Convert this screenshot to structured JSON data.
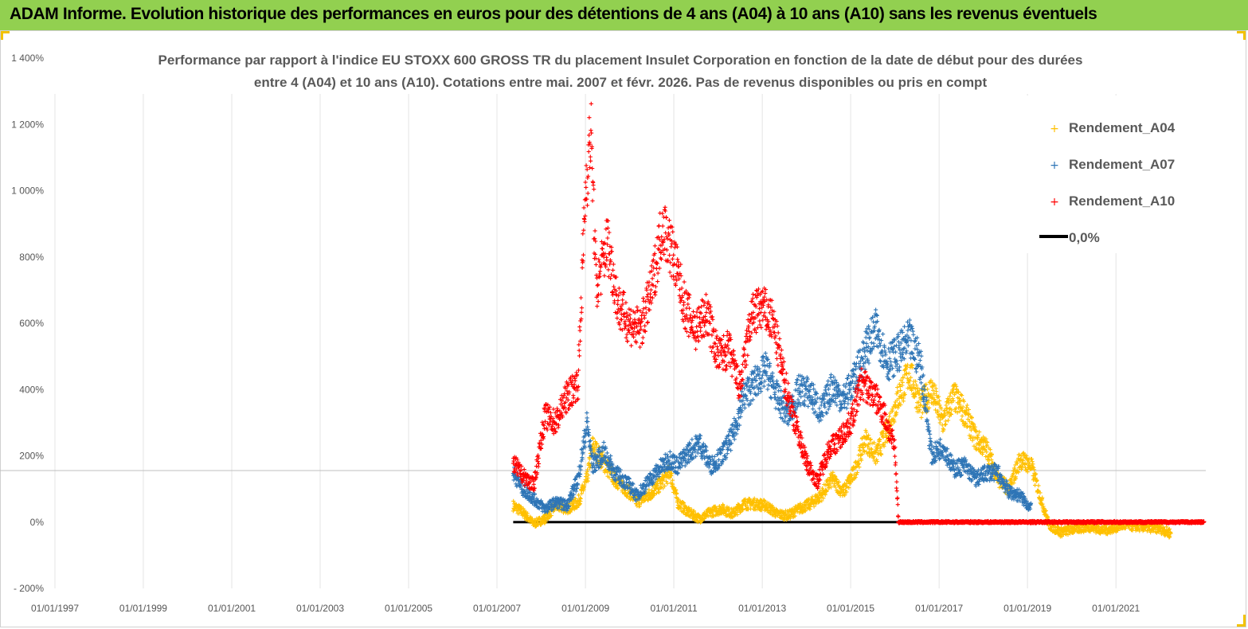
{
  "header": {
    "banner_title": "ADAM Informe. Evolution historique des performances en euros pour des détentions de 4 ans (A04) à 10 ans (A10) sans les revenus éventuels",
    "banner_color": "#92d050",
    "accent_color": "#f2c200"
  },
  "chart_data": {
    "type": "scatter",
    "title_lines": [
      "Performance par rapport à l'indice EU STOXX 600 GROSS TR  du placement Insulet Corporation en fonction de la date de début pour des durées",
      "entre 4 (A04) et 10 ans (A10). Cotations entre mai. 2007 et févr. 2026. Pas de revenus disponibles ou pris en compt"
    ],
    "xlabel": "",
    "ylabel": "",
    "x_range": [
      "1997-01-01",
      "2022-12-31"
    ],
    "y_range": [
      -200,
      1400
    ],
    "y_ticks": [
      -200,
      0,
      200,
      400,
      600,
      800,
      1000,
      1200,
      1400
    ],
    "y_tick_labels": [
      "- 200%",
      "0%",
      "200%",
      "400%",
      "600%",
      "800%",
      "1 000%",
      "1 200%",
      "1 400%"
    ],
    "x_tick_labels": [
      "01/01/1997",
      "01/01/1999",
      "01/01/2001",
      "01/01/2003",
      "01/01/2005",
      "01/01/2007",
      "01/01/2009",
      "01/01/2011",
      "01/01/2013",
      "01/01/2015",
      "01/01/2017",
      "01/01/2019",
      "01/01/2021"
    ],
    "grid": "vertical",
    "legend_position": "top-right",
    "legend": [
      "Rendement_A04",
      "Rendement_A07",
      "Rendement_A10",
      "0,0%"
    ],
    "series": [
      {
        "name": "Rendement_A04",
        "color": "#ffc000",
        "marker": "+",
        "points": [
          [
            "2007-05-15",
            50
          ],
          [
            "2007-08-01",
            30
          ],
          [
            "2007-11-01",
            -5
          ],
          [
            "2008-02-01",
            10
          ],
          [
            "2008-05-01",
            50
          ],
          [
            "2008-08-01",
            40
          ],
          [
            "2008-11-01",
            60
          ],
          [
            "2009-01-15",
            130
          ],
          [
            "2009-03-01",
            230
          ],
          [
            "2009-06-01",
            180
          ],
          [
            "2009-09-01",
            130
          ],
          [
            "2010-01-01",
            90
          ],
          [
            "2010-03-01",
            60
          ],
          [
            "2010-06-01",
            80
          ],
          [
            "2010-09-01",
            110
          ],
          [
            "2010-12-01",
            150
          ],
          [
            "2011-02-01",
            60
          ],
          [
            "2011-05-01",
            30
          ],
          [
            "2011-08-01",
            10
          ],
          [
            "2011-11-01",
            30
          ],
          [
            "2012-02-01",
            40
          ],
          [
            "2012-05-01",
            25
          ],
          [
            "2012-08-01",
            55
          ],
          [
            "2012-11-01",
            55
          ],
          [
            "2013-02-01",
            50
          ],
          [
            "2013-05-01",
            25
          ],
          [
            "2013-08-01",
            20
          ],
          [
            "2013-11-01",
            40
          ],
          [
            "2014-02-01",
            55
          ],
          [
            "2014-05-01",
            80
          ],
          [
            "2014-08-01",
            130
          ],
          [
            "2014-11-01",
            90
          ],
          [
            "2015-02-01",
            150
          ],
          [
            "2015-05-01",
            250
          ],
          [
            "2015-08-01",
            200
          ],
          [
            "2015-11-01",
            280
          ],
          [
            "2016-02-01",
            380
          ],
          [
            "2016-05-01",
            450
          ],
          [
            "2016-08-01",
            350
          ],
          [
            "2016-11-01",
            400
          ],
          [
            "2017-02-01",
            300
          ],
          [
            "2017-05-01",
            380
          ],
          [
            "2017-08-01",
            330
          ],
          [
            "2017-11-01",
            250
          ],
          [
            "2018-02-01",
            220
          ],
          [
            "2018-05-01",
            130
          ],
          [
            "2018-08-01",
            100
          ],
          [
            "2018-11-01",
            190
          ],
          [
            "2019-02-01",
            170
          ],
          [
            "2019-05-01",
            60
          ],
          [
            "2019-07-01",
            -10
          ],
          [
            "2019-10-01",
            -30
          ],
          [
            "2020-02-01",
            -20
          ],
          [
            "2020-06-01",
            -15
          ],
          [
            "2020-10-01",
            -25
          ],
          [
            "2021-03-01",
            -10
          ],
          [
            "2021-08-01",
            -15
          ],
          [
            "2022-01-01",
            -20
          ],
          [
            "2022-04-01",
            -35
          ]
        ]
      },
      {
        "name": "Rendement_A07",
        "color": "#2e75b6",
        "marker": "+",
        "points": [
          [
            "2007-05-15",
            150
          ],
          [
            "2007-08-01",
            100
          ],
          [
            "2007-11-01",
            70
          ],
          [
            "2008-02-01",
            40
          ],
          [
            "2008-05-01",
            60
          ],
          [
            "2008-08-01",
            50
          ],
          [
            "2008-11-01",
            130
          ],
          [
            "2009-01-15",
            300
          ],
          [
            "2009-03-01",
            170
          ],
          [
            "2009-06-01",
            210
          ],
          [
            "2009-09-01",
            150
          ],
          [
            "2010-01-01",
            110
          ],
          [
            "2010-03-01",
            80
          ],
          [
            "2010-06-01",
            120
          ],
          [
            "2010-09-01",
            160
          ],
          [
            "2010-12-01",
            190
          ],
          [
            "2011-02-01",
            170
          ],
          [
            "2011-05-01",
            210
          ],
          [
            "2011-08-01",
            240
          ],
          [
            "2011-11-01",
            170
          ],
          [
            "2012-02-01",
            200
          ],
          [
            "2012-05-01",
            260
          ],
          [
            "2012-08-01",
            380
          ],
          [
            "2012-11-01",
            420
          ],
          [
            "2013-02-01",
            460
          ],
          [
            "2013-05-01",
            380
          ],
          [
            "2013-08-01",
            320
          ],
          [
            "2013-11-01",
            400
          ],
          [
            "2014-02-01",
            390
          ],
          [
            "2014-05-01",
            330
          ],
          [
            "2014-08-01",
            410
          ],
          [
            "2014-11-01",
            370
          ],
          [
            "2015-02-01",
            430
          ],
          [
            "2015-05-01",
            520
          ],
          [
            "2015-08-01",
            580
          ],
          [
            "2015-11-01",
            480
          ],
          [
            "2016-02-01",
            510
          ],
          [
            "2016-05-01",
            550
          ],
          [
            "2016-08-01",
            480
          ],
          [
            "2016-11-01",
            200
          ],
          [
            "2017-02-01",
            230
          ],
          [
            "2017-05-01",
            160
          ],
          [
            "2017-08-01",
            170
          ],
          [
            "2017-11-01",
            130
          ],
          [
            "2018-02-01",
            150
          ],
          [
            "2018-05-01",
            150
          ],
          [
            "2018-08-01",
            90
          ],
          [
            "2018-11-01",
            80
          ],
          [
            "2019-02-01",
            40
          ]
        ]
      },
      {
        "name": "Rendement_A10",
        "color": "#ff0000",
        "marker": "+",
        "points": [
          [
            "2007-05-15",
            180
          ],
          [
            "2007-08-01",
            140
          ],
          [
            "2007-11-01",
            110
          ],
          [
            "2008-02-01",
            320
          ],
          [
            "2008-05-01",
            300
          ],
          [
            "2008-08-01",
            380
          ],
          [
            "2008-11-01",
            420
          ],
          [
            "2009-01-01",
            1000
          ],
          [
            "2009-02-15",
            1180
          ],
          [
            "2009-04-01",
            700
          ],
          [
            "2009-07-01",
            850
          ],
          [
            "2009-10-01",
            650
          ],
          [
            "2010-01-01",
            600
          ],
          [
            "2010-04-01",
            580
          ],
          [
            "2010-07-01",
            700
          ],
          [
            "2010-10-01",
            900
          ],
          [
            "2011-01-01",
            800
          ],
          [
            "2011-04-01",
            650
          ],
          [
            "2011-07-01",
            580
          ],
          [
            "2011-10-01",
            630
          ],
          [
            "2012-01-01",
            500
          ],
          [
            "2012-04-01",
            520
          ],
          [
            "2012-07-01",
            400
          ],
          [
            "2012-10-01",
            620
          ],
          [
            "2013-01-01",
            650
          ],
          [
            "2013-04-01",
            600
          ],
          [
            "2013-07-01",
            430
          ],
          [
            "2013-10-01",
            300
          ],
          [
            "2014-01-01",
            180
          ],
          [
            "2014-04-01",
            120
          ],
          [
            "2014-07-01",
            220
          ],
          [
            "2014-10-01",
            250
          ],
          [
            "2015-01-01",
            300
          ],
          [
            "2015-04-01",
            420
          ],
          [
            "2015-07-01",
            390
          ],
          [
            "2015-10-01",
            330
          ],
          [
            "2016-01-01",
            220
          ],
          [
            "2016-02-01",
            0
          ],
          [
            "2016-06-01",
            0
          ],
          [
            "2017-01-01",
            0
          ],
          [
            "2018-01-01",
            0
          ],
          [
            "2019-01-01",
            0
          ],
          [
            "2020-01-01",
            0
          ],
          [
            "2021-01-01",
            0
          ],
          [
            "2022-01-01",
            0
          ],
          [
            "2022-12-31",
            0
          ]
        ]
      },
      {
        "name": "0,0%",
        "color": "#000000",
        "marker": "line",
        "points": [
          [
            "2007-05-15",
            0
          ],
          [
            "2016-01-31",
            0
          ]
        ]
      }
    ]
  }
}
